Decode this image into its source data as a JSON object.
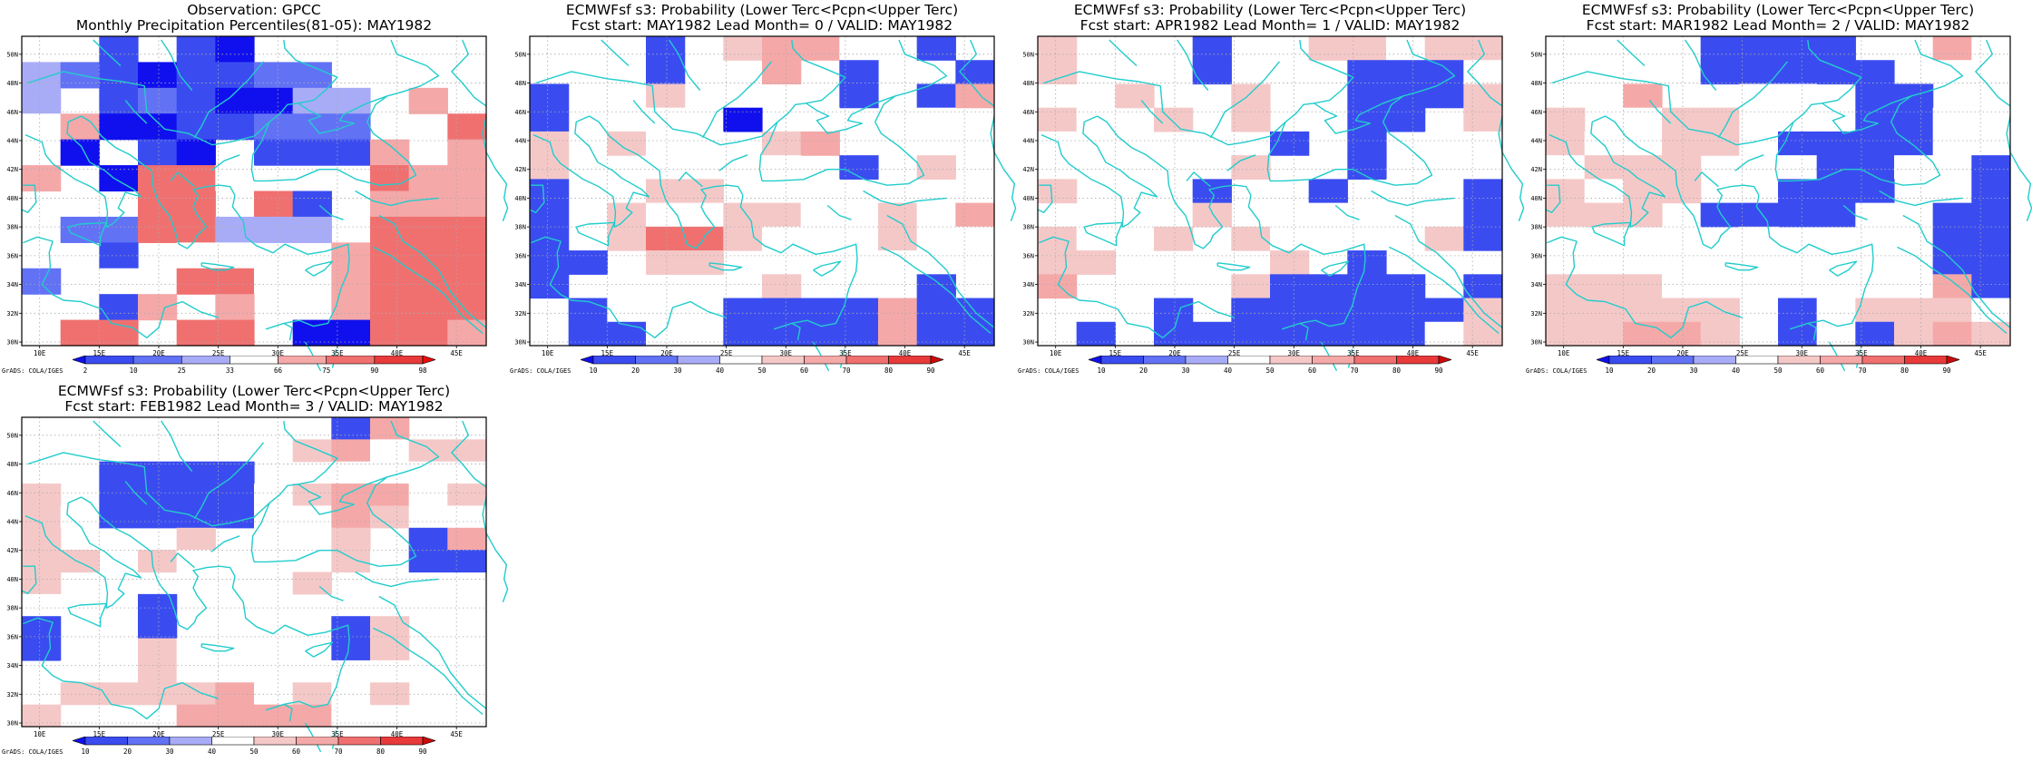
{
  "panels": [
    {
      "id": "obs",
      "title_line1": "Observation: GPCC",
      "title_line2": "Monthly Precipitation Percentiles(81-05): MAY1982",
      "colorbar": {
        "labels": [
          "2",
          "10",
          "25",
          "33",
          "66",
          "75",
          "90",
          "98"
        ],
        "colors": [
          "#1010ee",
          "#3a4cf0",
          "#6272f5",
          "#a8acf7",
          "#ffffff",
          "#f5a8a8",
          "#f07070",
          "#e83a3a",
          "#ee0a0a"
        ]
      },
      "grid": [
        "..B.BA...E..",
        "DCBABBCC.E..",
        "D.BCBAADD.F.",
        "EFAABBCCC..G",
        ".A.BA.BBBF.F",
        "F.AGGE...GFF",
        "...GG.GB.FFF",
        ".CCGGDDD.GGG",
        "..B.EE..FGGG",
        "C.E.GGEEFGGG",
        "..BF.F..FGGG",
        ".GG.GG.AAGGF"
      ]
    },
    {
      "id": "lead0",
      "title_line1": "ECMWFsf s3: Probability (Lower Terc<Pcpn<Upper Terc)",
      "title_line2": "Fcst start: MAY1982  Lead Month= 0 / VALID: MAY1982",
      "colorbar": {
        "labels": [
          "10",
          "20",
          "30",
          "40",
          "50",
          "60",
          "70",
          "80",
          "90"
        ],
        "colors": [
          "#1010ee",
          "#3a4cf0",
          "#6272f5",
          "#a8acf7",
          "#ffffff",
          "#f5c8c8",
          "#f5a8a8",
          "#f07070",
          "#e83a3a",
          "#cc0a0a"
        ]
      },
      "grid": [
        "...B.FGGE.B.",
        "...B..G.B..B",
        "B.EF....B.BG",
        "B.EE.A.E..E.",
        "F.FEE.FG....",
        "F.....E.B.F.",
        "B..FF..E...E",
        "B.FEEFFE.FEG",
        "B.FHHFEE.FEE",
        "BB.FF....E.E",
        "B.....F...B.",
        ".BEE.BBBBGBB",
        ".BBE.BBBBGBB"
      ]
    },
    {
      "id": "lead1",
      "title_line1": "ECMWFsf s3: Probability (Lower Terc<Pcpn<Upper Terc)",
      "title_line2": "Fcst start: APR1982  Lead Month= 1 / VALID: MAY1982",
      "colorbar": {
        "labels": [
          "10",
          "20",
          "30",
          "40",
          "50",
          "60",
          "70",
          "80",
          "90"
        ],
        "colors": [
          "#1010ee",
          "#3a4cf0",
          "#6272f5",
          "#a8acf7",
          "#ffffff",
          "#f5c8c8",
          "#f5a8a8",
          "#f07070",
          "#e83a3a",
          "#cc0a0a"
        ]
      },
      "grid": [
        "F...B..FFEFF",
        "F.E.B...BBBE",
        "..F..F.EBBBF",
        "FE.F.F..BB.F",
        "E.....B.B.EE",
        "E...EF..B...",
        "F...B..B.EEB",
        "...EF.EE.E.B",
        "FEEF.FE...FB",
        "FF....F.B...",
        "G...EFBBBB.B",
        "...B.BBBBBBF",
        ".B.BBBBBBBEF"
      ]
    },
    {
      "id": "lead2",
      "title_line1": "ECMWFsf s3: Probability (Lower Terc<Pcpn<Upper Terc)",
      "title_line2": "Fcst start: MAR1982  Lead Month= 2 / VALID: MAY1982",
      "colorbar": {
        "labels": [
          "10",
          "20",
          "30",
          "40",
          "50",
          "60",
          "70",
          "80",
          "90"
        ],
        "colors": [
          "#1010ee",
          "#3a4cf0",
          "#6272f5",
          "#a8acf7",
          "#ffffff",
          "#f5c8c8",
          "#f5a8a8",
          "#f07070",
          "#e83a3a",
          "#cc0a0a"
        ]
      },
      "grid": [
        "....BBBB.EGE",
        "....BBBBB.EE",
        "..G..EE.BB.E",
        "F.EFFEEEBBEE",
        "FEEFFEBBBBEE",
        "EFFF.EEBBE.B",
        "FEFF..BBB.EB",
        "FFF.BBBBE.BB",
        "E..E.E..EEBB",
        "E..E...EEEBB",
        "FFFE.E.EEEGB",
        "FFFFF.BEFFFE",
        "FFGGF.BEBFGF"
      ]
    },
    {
      "id": "lead3",
      "title_line1": "ECMWFsf s3: Probability (Lower Terc<Pcpn<Upper Terc)",
      "title_line2": "Fcst start: FEB1982  Lead Month= 3 / VALID: MAY1982",
      "colorbar": {
        "labels": [
          "10",
          "20",
          "30",
          "40",
          "50",
          "60",
          "70",
          "80",
          "90"
        ],
        "colors": [
          "#1010ee",
          "#3a4cf0",
          "#6272f5",
          "#a8acf7",
          "#ffffff",
          "#f5c8c8",
          "#f5a8a8",
          "#f07070",
          "#e83a3a",
          "#cc0a0a"
        ]
      },
      "grid": [
        "...E....BG..",
        "...E...FGEFF",
        "..BBBB..EEEE",
        "F.BBBBEFGGEF",
        "FEBBBBEEGFEE",
        "F...F.EEF.BG",
        "FF.FE...FEBB",
        "F......F....",
        "E..B........",
        "B..B....BF..",
        "B..FE...BF..",
        ".E.FE...EE..",
        ".FFFFGEFEF..",
        "F...GGGGE..."
      ]
    }
  ],
  "axes": {
    "lon_labels": [
      "10E",
      "15E",
      "20E",
      "25E",
      "30E",
      "35E",
      "40E",
      "45E"
    ],
    "lat_labels": [
      "30N",
      "32N",
      "34N",
      "36N",
      "38N",
      "40N",
      "42N",
      "44N",
      "46N",
      "48N",
      "50N"
    ],
    "lon_range": [
      8.5,
      47.5
    ],
    "lat_range": [
      29.75,
      51.25
    ]
  },
  "credit": "GrADS: COLA/IGES",
  "coastline_color": "#22cccc"
}
